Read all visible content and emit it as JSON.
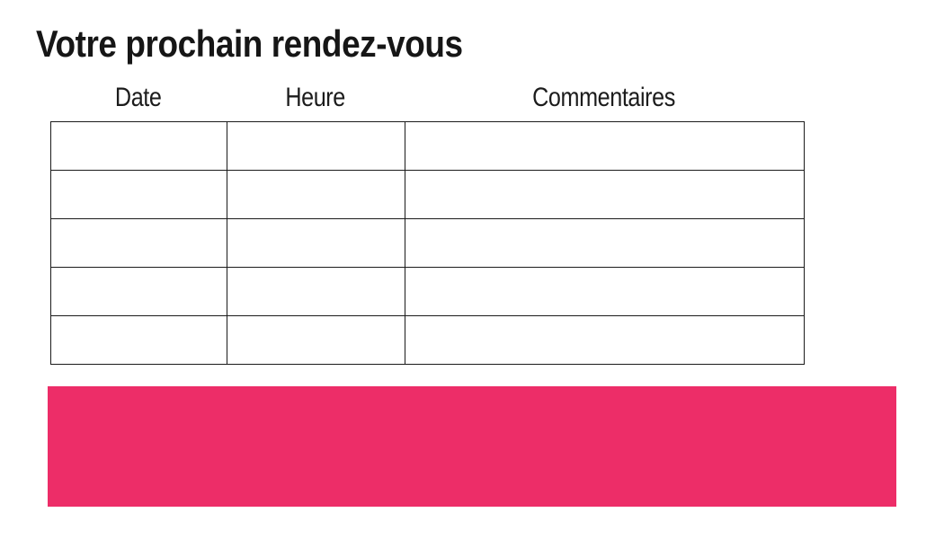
{
  "page": {
    "title": "Votre prochain rendez-vous"
  },
  "table": {
    "columns": [
      {
        "label": "Date"
      },
      {
        "label": "Heure"
      },
      {
        "label": "Commentaires"
      }
    ],
    "rows": [
      [
        "",
        "",
        ""
      ],
      [
        "",
        "",
        ""
      ],
      [
        "",
        "",
        ""
      ],
      [
        "",
        "",
        ""
      ],
      [
        "",
        "",
        ""
      ]
    ]
  },
  "banner": {
    "color": "#ED2D68"
  },
  "colors": {
    "text": "#161616",
    "table_border": "#1b1b1b",
    "background": "#ffffff"
  }
}
